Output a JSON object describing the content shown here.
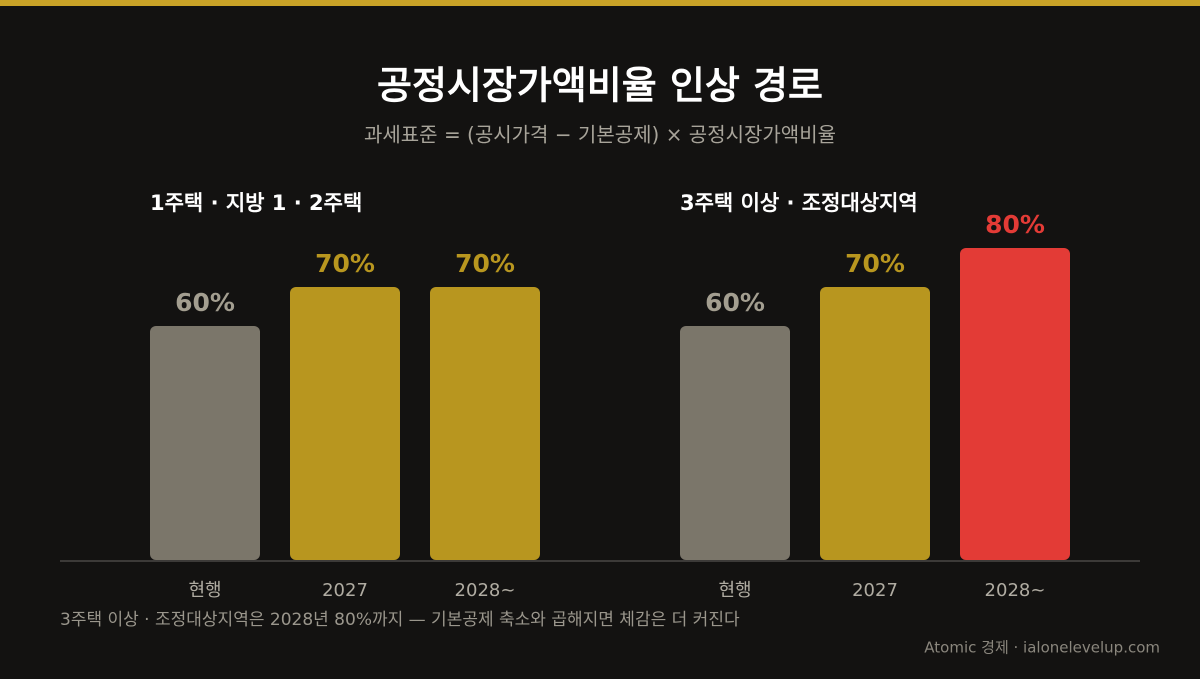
{
  "title": "공정시장가액비율 인상 경로",
  "subtitle": "과세표준 = (공시가격 − 기본공제) × 공정시장가액비율",
  "chart_data": [
    {
      "type": "bar",
      "title": "1주택 · 지방 1 · 2주택",
      "categories": [
        "현행",
        "2027",
        "2028~"
      ],
      "values": [
        60,
        70,
        70
      ],
      "value_labels": [
        "60%",
        "70%",
        "70%"
      ],
      "colors": [
        "#7b766a",
        "#b8961f",
        "#b8961f"
      ]
    },
    {
      "type": "bar",
      "title": "3주택 이상 · 조정대상지역",
      "categories": [
        "현행",
        "2027",
        "2028~"
      ],
      "values": [
        60,
        70,
        80
      ],
      "value_labels": [
        "60%",
        "70%",
        "80%"
      ],
      "colors": [
        "#7b766a",
        "#b8961f",
        "#e33b36"
      ]
    }
  ],
  "note": "3주택 이상 · 조정대상지역은 2028년 80%까지 — 기본공제 축소와 곱해지면 체감은 더 커진다",
  "footer": "Atomic 경제 · ialonelevelup.com"
}
